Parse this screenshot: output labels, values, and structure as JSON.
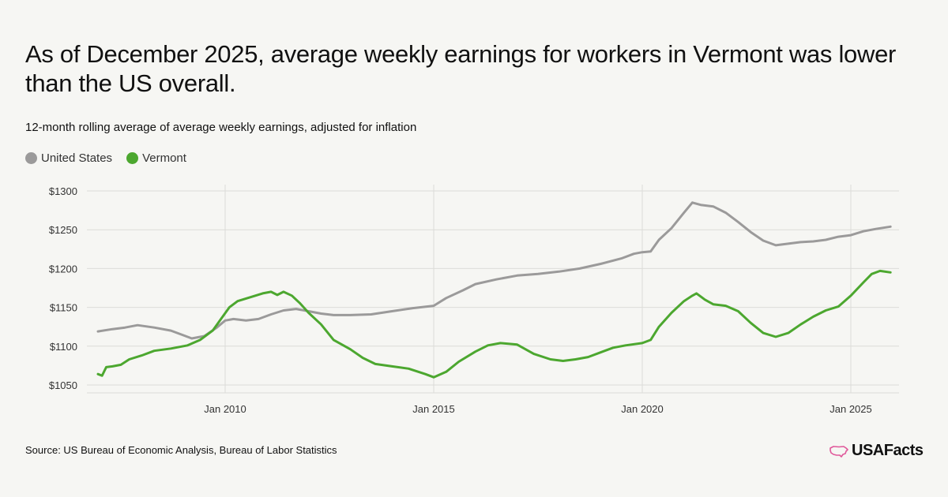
{
  "colors": {
    "united_states": "#9b9a9a",
    "vermont": "#4ca72f",
    "brand": "#e0589a",
    "grid": "#dcdcd8"
  },
  "header": {
    "title": "As of December 2025, average weekly earnings for workers in Vermont was lower than the US overall.",
    "subtitle": "12-month rolling average of average weekly earnings, adjusted for inflation"
  },
  "legend": {
    "items": [
      "United States",
      "Vermont"
    ]
  },
  "footer": {
    "source": "Source: US Bureau of Economic Analysis, Bureau of Labor Statistics",
    "brand": "USAFacts"
  },
  "chart_data": {
    "type": "line",
    "title": "As of December 2025, average weekly earnings for workers in Vermont was lower than the US overall.",
    "subtitle": "12-month rolling average of average weekly earnings, adjusted for inflation",
    "xlabel": "",
    "ylabel": "",
    "ylim": [
      1045,
      1305
    ],
    "xlim": [
      2006.8,
      2026.2
    ],
    "y_ticks": [
      {
        "value": 1050,
        "label": "$1050"
      },
      {
        "value": 1100,
        "label": "$1100"
      },
      {
        "value": 1150,
        "label": "$1150"
      },
      {
        "value": 1200,
        "label": "$1200"
      },
      {
        "value": 1250,
        "label": "$1250"
      },
      {
        "value": 1300,
        "label": "$1300"
      }
    ],
    "x_ticks": [
      {
        "value": 2010,
        "label": "Jan 2010"
      },
      {
        "value": 2015,
        "label": "Jan 2015"
      },
      {
        "value": 2020,
        "label": "Jan 2020"
      },
      {
        "value": 2025,
        "label": "Jan 2025"
      }
    ],
    "grid": true,
    "legend_position": "top-left",
    "series": [
      {
        "name": "United States",
        "points": [
          [
            2006.95,
            1119
          ],
          [
            2007.3,
            1122
          ],
          [
            2007.6,
            1124
          ],
          [
            2007.9,
            1127
          ],
          [
            2008.3,
            1124
          ],
          [
            2008.7,
            1120
          ],
          [
            2009.0,
            1114
          ],
          [
            2009.2,
            1110
          ],
          [
            2009.5,
            1113
          ],
          [
            2009.8,
            1124
          ],
          [
            2010.0,
            1133
          ],
          [
            2010.2,
            1135
          ],
          [
            2010.5,
            1133
          ],
          [
            2010.8,
            1135
          ],
          [
            2011.1,
            1141
          ],
          [
            2011.4,
            1146
          ],
          [
            2011.7,
            1148
          ],
          [
            2012.0,
            1145
          ],
          [
            2012.3,
            1142
          ],
          [
            2012.6,
            1140
          ],
          [
            2013.0,
            1140
          ],
          [
            2013.5,
            1141
          ],
          [
            2014.0,
            1145
          ],
          [
            2014.5,
            1149
          ],
          [
            2015.0,
            1152
          ],
          [
            2015.3,
            1162
          ],
          [
            2015.7,
            1172
          ],
          [
            2016.0,
            1180
          ],
          [
            2016.5,
            1186
          ],
          [
            2017.0,
            1191
          ],
          [
            2017.5,
            1193
          ],
          [
            2018.0,
            1196
          ],
          [
            2018.5,
            1200
          ],
          [
            2019.0,
            1206
          ],
          [
            2019.5,
            1213
          ],
          [
            2019.8,
            1219
          ],
          [
            2020.0,
            1221
          ],
          [
            2020.2,
            1222
          ],
          [
            2020.4,
            1237
          ],
          [
            2020.7,
            1252
          ],
          [
            2021.0,
            1272
          ],
          [
            2021.2,
            1285
          ],
          [
            2021.4,
            1282
          ],
          [
            2021.7,
            1280
          ],
          [
            2022.0,
            1272
          ],
          [
            2022.3,
            1260
          ],
          [
            2022.6,
            1247
          ],
          [
            2022.9,
            1236
          ],
          [
            2023.2,
            1230
          ],
          [
            2023.5,
            1232
          ],
          [
            2023.8,
            1234
          ],
          [
            2024.1,
            1235
          ],
          [
            2024.4,
            1237
          ],
          [
            2024.7,
            1241
          ],
          [
            2025.0,
            1243
          ],
          [
            2025.3,
            1248
          ],
          [
            2025.6,
            1251
          ],
          [
            2025.95,
            1254
          ]
        ]
      },
      {
        "name": "Vermont",
        "points": [
          [
            2006.95,
            1064
          ],
          [
            2007.05,
            1062
          ],
          [
            2007.15,
            1073
          ],
          [
            2007.3,
            1074
          ],
          [
            2007.5,
            1076
          ],
          [
            2007.7,
            1083
          ],
          [
            2008.0,
            1088
          ],
          [
            2008.3,
            1094
          ],
          [
            2008.7,
            1097
          ],
          [
            2008.9,
            1099
          ],
          [
            2009.1,
            1101
          ],
          [
            2009.4,
            1108
          ],
          [
            2009.7,
            1120
          ],
          [
            2009.9,
            1135
          ],
          [
            2010.1,
            1150
          ],
          [
            2010.3,
            1158
          ],
          [
            2010.6,
            1163
          ],
          [
            2010.9,
            1168
          ],
          [
            2011.1,
            1170
          ],
          [
            2011.25,
            1166
          ],
          [
            2011.4,
            1170
          ],
          [
            2011.6,
            1165
          ],
          [
            2011.8,
            1155
          ],
          [
            2012.0,
            1143
          ],
          [
            2012.3,
            1128
          ],
          [
            2012.6,
            1108
          ],
          [
            2013.0,
            1096
          ],
          [
            2013.3,
            1085
          ],
          [
            2013.6,
            1077
          ],
          [
            2014.0,
            1074
          ],
          [
            2014.4,
            1071
          ],
          [
            2014.8,
            1064
          ],
          [
            2015.0,
            1060
          ],
          [
            2015.3,
            1067
          ],
          [
            2015.6,
            1080
          ],
          [
            2016.0,
            1093
          ],
          [
            2016.3,
            1101
          ],
          [
            2016.6,
            1104
          ],
          [
            2017.0,
            1102
          ],
          [
            2017.4,
            1090
          ],
          [
            2017.8,
            1083
          ],
          [
            2018.1,
            1081
          ],
          [
            2018.4,
            1083
          ],
          [
            2018.7,
            1086
          ],
          [
            2019.0,
            1092
          ],
          [
            2019.3,
            1098
          ],
          [
            2019.6,
            1101
          ],
          [
            2020.0,
            1104
          ],
          [
            2020.2,
            1108
          ],
          [
            2020.4,
            1125
          ],
          [
            2020.7,
            1143
          ],
          [
            2021.0,
            1158
          ],
          [
            2021.2,
            1165
          ],
          [
            2021.3,
            1168
          ],
          [
            2021.5,
            1160
          ],
          [
            2021.7,
            1154
          ],
          [
            2022.0,
            1152
          ],
          [
            2022.3,
            1145
          ],
          [
            2022.6,
            1130
          ],
          [
            2022.9,
            1117
          ],
          [
            2023.2,
            1112
          ],
          [
            2023.5,
            1117
          ],
          [
            2023.8,
            1128
          ],
          [
            2024.1,
            1138
          ],
          [
            2024.4,
            1146
          ],
          [
            2024.7,
            1151
          ],
          [
            2025.0,
            1165
          ],
          [
            2025.3,
            1182
          ],
          [
            2025.5,
            1193
          ],
          [
            2025.7,
            1197
          ],
          [
            2025.95,
            1195
          ]
        ]
      }
    ]
  }
}
